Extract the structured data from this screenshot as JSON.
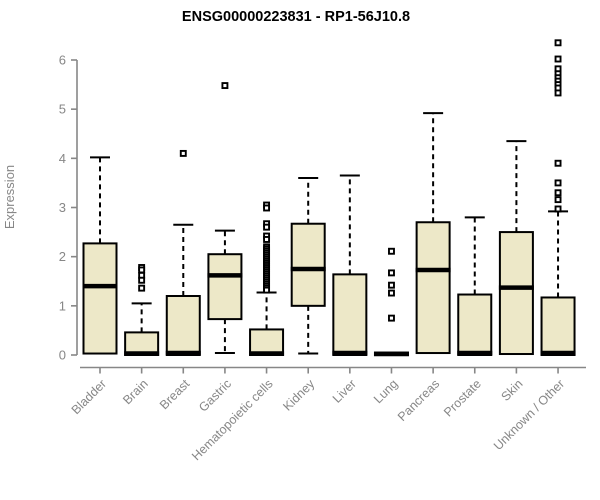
{
  "chart_data": {
    "type": "boxplot",
    "title": "ENSG00000223831 - RP1-56J10.8",
    "xlabel": "",
    "ylabel": "Expression",
    "ylim": [
      0,
      6.4
    ],
    "yticks": [
      0,
      1,
      2,
      3,
      4,
      5,
      6
    ],
    "grid": false,
    "legend": "none",
    "categories": [
      "Bladder",
      "Brain",
      "Breast",
      "Gastric",
      "Hematopoietic cells",
      "Kidney",
      "Liver",
      "Lung",
      "Pancreas",
      "Prostate",
      "Skin",
      "Unknown / Other"
    ],
    "series": [
      {
        "category": "Bladder",
        "whisker_low": 0.03,
        "q1": 0.03,
        "median": 1.4,
        "q3": 2.27,
        "whisker_high": 4.02,
        "outliers": []
      },
      {
        "category": "Brain",
        "whisker_low": 0.0,
        "q1": 0.0,
        "median": 0.03,
        "q3": 0.46,
        "whisker_high": 1.05,
        "outliers": [
          1.78,
          1.73,
          1.62,
          1.52,
          1.36
        ]
      },
      {
        "category": "Breast",
        "whisker_low": 0.0,
        "q1": 0.0,
        "median": 0.04,
        "q3": 1.2,
        "whisker_high": 2.65,
        "outliers": [
          4.1
        ]
      },
      {
        "category": "Gastric",
        "whisker_low": 0.04,
        "q1": 0.73,
        "median": 1.62,
        "q3": 2.05,
        "whisker_high": 2.53,
        "outliers": [
          5.48
        ]
      },
      {
        "category": "Hematopoietic cells",
        "whisker_low": 0.0,
        "q1": 0.0,
        "median": 0.03,
        "q3": 0.52,
        "whisker_high": 1.27,
        "outliers": [
          3.05,
          2.99,
          2.67,
          2.6,
          2.42,
          2.35,
          2.2,
          2.16,
          2.12,
          2.08,
          2.04,
          2.0,
          1.96,
          1.92,
          1.88,
          1.84,
          1.8,
          1.76,
          1.72,
          1.68,
          1.64,
          1.6,
          1.56,
          1.52,
          1.48,
          1.44,
          1.4,
          1.36,
          1.32
        ]
      },
      {
        "category": "Kidney",
        "whisker_low": 0.03,
        "q1": 1.0,
        "median": 1.75,
        "q3": 2.67,
        "whisker_high": 3.6,
        "outliers": []
      },
      {
        "category": "Liver",
        "whisker_low": 0.0,
        "q1": 0.0,
        "median": 0.04,
        "q3": 1.64,
        "whisker_high": 3.65,
        "outliers": []
      },
      {
        "category": "Lung",
        "whisker_low": 0.0,
        "q1": 0.0,
        "median": 0.02,
        "q3": 0.05,
        "whisker_high": 0.05,
        "outliers": [
          2.11,
          1.67,
          1.42,
          1.26,
          0.75
        ]
      },
      {
        "category": "Pancreas",
        "whisker_low": 0.04,
        "q1": 0.04,
        "median": 1.73,
        "q3": 2.7,
        "whisker_high": 4.92,
        "outliers": []
      },
      {
        "category": "Prostate",
        "whisker_low": 0.0,
        "q1": 0.0,
        "median": 0.04,
        "q3": 1.23,
        "whisker_high": 2.8,
        "outliers": []
      },
      {
        "category": "Skin",
        "whisker_low": 0.02,
        "q1": 0.02,
        "median": 1.37,
        "q3": 2.5,
        "whisker_high": 4.35,
        "outliers": []
      },
      {
        "category": "Unknown / Other",
        "whisker_low": 0.0,
        "q1": 0.0,
        "median": 0.04,
        "q3": 1.17,
        "whisker_high": 2.92,
        "outliers": [
          6.35,
          6.02,
          5.82,
          5.72,
          5.64,
          5.57,
          5.5,
          5.43,
          5.33,
          3.9,
          3.5,
          3.3,
          3.16,
          2.97
        ]
      }
    ],
    "colors": {
      "box_fill": "#EDE8C8",
      "box_border": "#000000",
      "median": "#000000",
      "whisker": "#000000",
      "outlier": "#000000",
      "axis": "#878787",
      "tick_label": "#878787",
      "title": "#000000",
      "background": "#ffffff"
    }
  }
}
